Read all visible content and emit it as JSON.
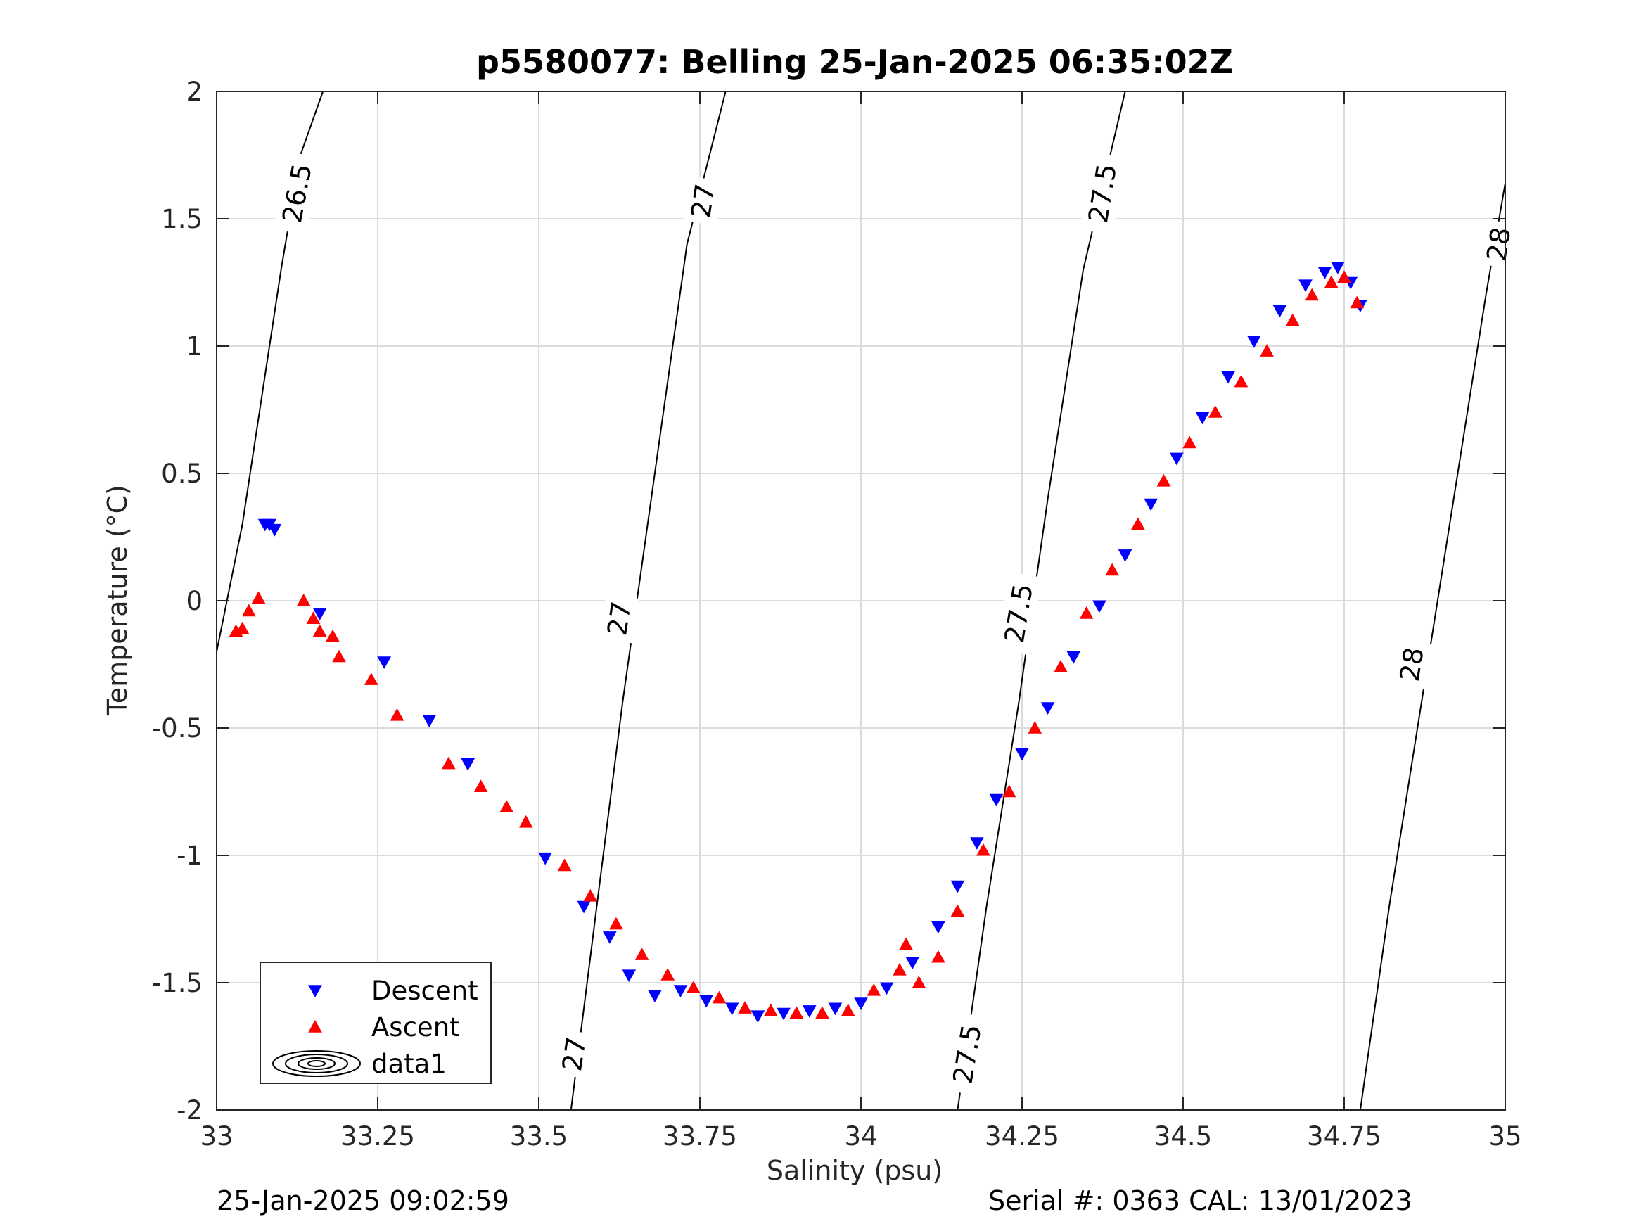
{
  "footer": {
    "left": "25-Jan-2025 09:02:59",
    "right": "Serial #: 0363  CAL: 13/01/2023"
  },
  "chart_data": {
    "type": "scatter",
    "title": "p5580077: Belling 25-Jan-2025 06:35:02Z",
    "xlabel": "Salinity (psu)",
    "ylabel": "Temperature (°C)",
    "xlim": [
      33,
      35
    ],
    "ylim": [
      -2,
      2
    ],
    "xticks": [
      33,
      33.25,
      33.5,
      33.75,
      34,
      34.25,
      34.5,
      34.75,
      35
    ],
    "xtick_labels": [
      "33",
      "33.25",
      "33.5",
      "33.75",
      "34",
      "34.25",
      "34.5",
      "34.75",
      "35"
    ],
    "yticks": [
      2,
      1.5,
      1,
      0.5,
      0,
      -0.5,
      -1,
      -1.5,
      -2
    ],
    "ytick_labels": [
      "2",
      "1.5",
      "1",
      "0.5",
      "0",
      "-0.5",
      "-1",
      "-1.5",
      "-2"
    ],
    "grid": true,
    "legend_position": "bottom-left",
    "legend": [
      "Descent",
      "Ascent",
      "data1"
    ],
    "colors": {
      "descent": "#0000ff",
      "ascent": "#ff0000",
      "contour": "#000000",
      "grid": "#dcdcdc"
    },
    "contours": [
      {
        "level": "26.5",
        "points": [
          [
            33.0,
            -0.2
          ],
          [
            33.04,
            0.3
          ],
          [
            33.07,
            0.8
          ],
          [
            33.1,
            1.3
          ],
          [
            33.13,
            1.75
          ],
          [
            33.165,
            2.0
          ]
        ],
        "labels": [
          {
            "x": 33.125,
            "y": 1.6
          }
        ]
      },
      {
        "level": "27",
        "points": [
          [
            33.55,
            -2.0
          ],
          [
            33.59,
            -1.2
          ],
          [
            33.63,
            -0.4
          ],
          [
            33.68,
            0.5
          ],
          [
            33.73,
            1.4
          ],
          [
            33.79,
            2.0
          ]
        ],
        "labels": [
          {
            "x": 33.555,
            "y": -1.78
          },
          {
            "x": 33.625,
            "y": -0.07
          },
          {
            "x": 33.755,
            "y": 1.57
          }
        ]
      },
      {
        "level": "27.5",
        "points": [
          [
            34.15,
            -2.0
          ],
          [
            34.195,
            -1.2
          ],
          [
            34.245,
            -0.4
          ],
          [
            34.29,
            0.4
          ],
          [
            34.345,
            1.3
          ],
          [
            34.41,
            2.0
          ]
        ],
        "labels": [
          {
            "x": 34.165,
            "y": -1.78
          },
          {
            "x": 34.245,
            "y": -0.05
          },
          {
            "x": 34.375,
            "y": 1.6
          }
        ]
      },
      {
        "level": "28",
        "points": [
          [
            34.775,
            -2.0
          ],
          [
            34.82,
            -1.2
          ],
          [
            34.87,
            -0.4
          ],
          [
            34.92,
            0.4
          ],
          [
            34.97,
            1.2
          ],
          [
            35.0,
            1.64
          ]
        ],
        "labels": [
          {
            "x": 34.855,
            "y": -0.25
          },
          {
            "x": 34.99,
            "y": 1.4
          }
        ]
      }
    ],
    "series": [
      {
        "name": "Descent",
        "marker": "triangle-down",
        "x": [
          33.075,
          33.082,
          33.09,
          33.16,
          33.26,
          33.33,
          33.39,
          33.51,
          33.57,
          33.61,
          33.64,
          33.68,
          33.72,
          33.76,
          33.8,
          33.84,
          33.88,
          33.92,
          33.96,
          34.0,
          34.04,
          34.08,
          34.12,
          34.15,
          34.18,
          34.21,
          34.25,
          34.29,
          34.33,
          34.37,
          34.41,
          34.45,
          34.49,
          34.53,
          34.57,
          34.61,
          34.65,
          34.69,
          34.72,
          34.74,
          34.76,
          34.775
        ],
        "y": [
          0.3,
          0.3,
          0.28,
          -0.05,
          -0.24,
          -0.47,
          -0.64,
          -1.01,
          -1.2,
          -1.32,
          -1.47,
          -1.55,
          -1.53,
          -1.57,
          -1.6,
          -1.63,
          -1.62,
          -1.61,
          -1.6,
          -1.58,
          -1.52,
          -1.42,
          -1.28,
          -1.12,
          -0.95,
          -0.78,
          -0.6,
          -0.42,
          -0.22,
          -0.02,
          0.18,
          0.38,
          0.56,
          0.72,
          0.88,
          1.02,
          1.14,
          1.24,
          1.29,
          1.31,
          1.25,
          1.16
        ]
      },
      {
        "name": "Ascent",
        "marker": "triangle-up",
        "x": [
          33.03,
          33.04,
          33.05,
          33.065,
          33.135,
          33.15,
          33.16,
          33.18,
          33.19,
          33.24,
          33.28,
          33.36,
          33.41,
          33.45,
          33.48,
          33.54,
          33.58,
          33.62,
          33.66,
          33.7,
          33.74,
          33.78,
          33.82,
          33.86,
          33.9,
          33.94,
          33.98,
          34.02,
          34.06,
          34.07,
          34.09,
          34.12,
          34.15,
          34.19,
          34.23,
          34.27,
          34.31,
          34.35,
          34.39,
          34.43,
          34.47,
          34.51,
          34.55,
          34.59,
          34.63,
          34.67,
          34.7,
          34.73,
          34.75,
          34.77
        ],
        "y": [
          -0.12,
          -0.11,
          -0.04,
          0.01,
          0.0,
          -0.07,
          -0.12,
          -0.14,
          -0.22,
          -0.31,
          -0.45,
          -0.64,
          -0.73,
          -0.81,
          -0.87,
          -1.04,
          -1.16,
          -1.27,
          -1.39,
          -1.47,
          -1.52,
          -1.56,
          -1.6,
          -1.61,
          -1.62,
          -1.62,
          -1.61,
          -1.53,
          -1.45,
          -1.35,
          -1.5,
          -1.4,
          -1.22,
          -0.98,
          -0.75,
          -0.5,
          -0.26,
          -0.05,
          0.12,
          0.3,
          0.47,
          0.62,
          0.74,
          0.86,
          0.98,
          1.1,
          1.2,
          1.25,
          1.27,
          1.17
        ]
      }
    ]
  }
}
